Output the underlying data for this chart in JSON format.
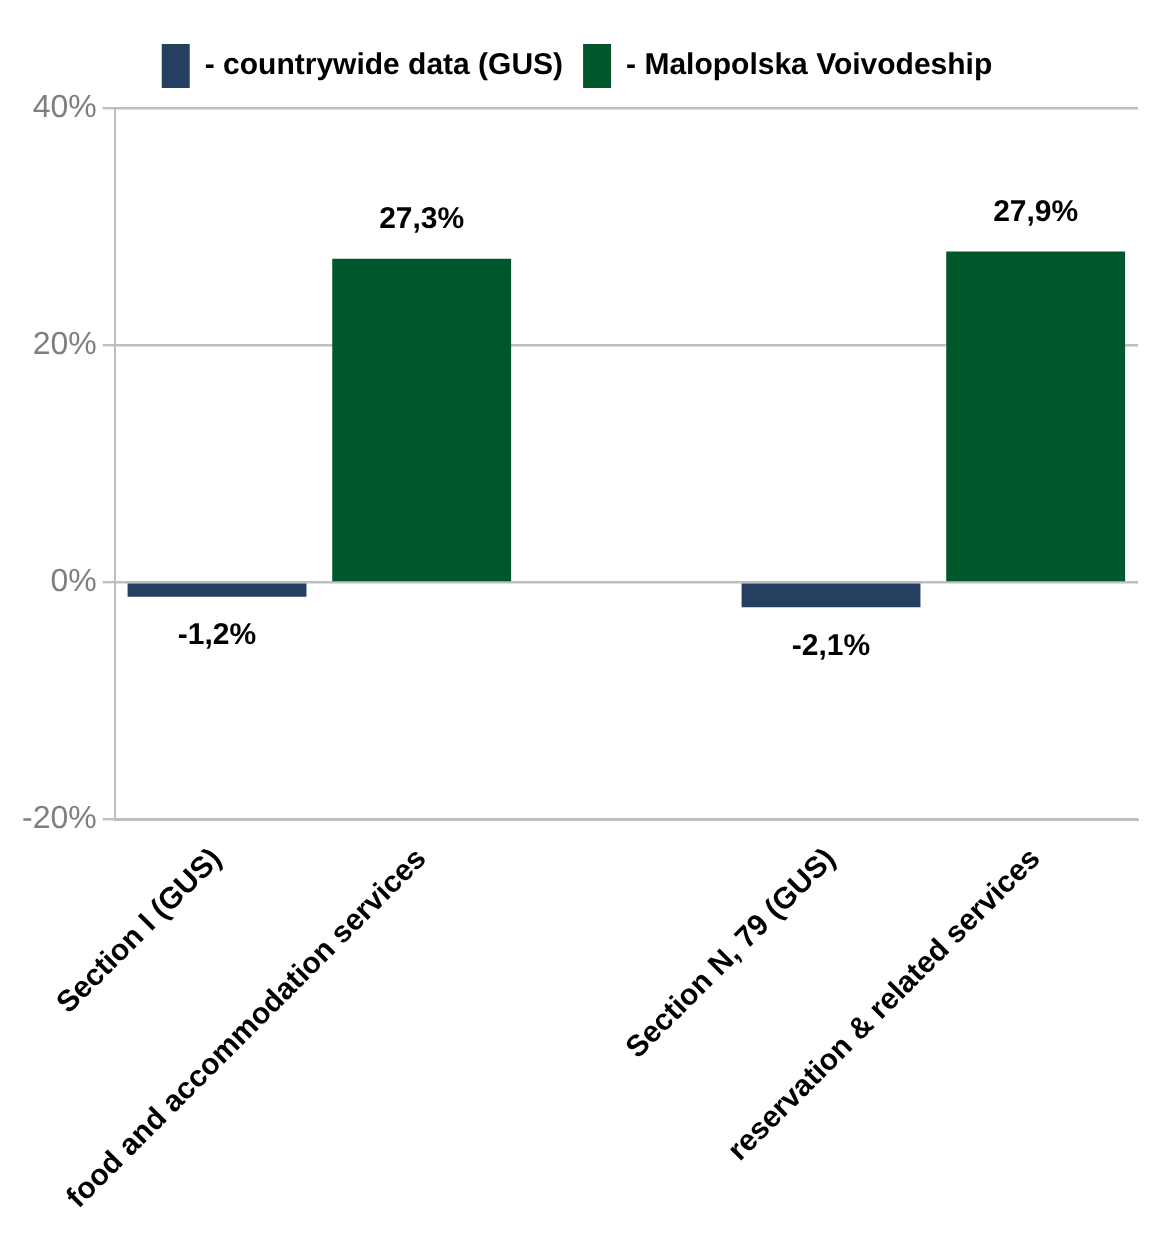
{
  "chart_data": {
    "type": "bar",
    "categories": [
      "Section I (GUS)",
      "food and accommodation services",
      null,
      "Section N, 79 (GUS)",
      "reservation & related services"
    ],
    "series": [
      {
        "name": "- countrywide data (GUS)",
        "color": "#243f60",
        "values": [
          -1.2,
          null,
          null,
          -2.1,
          null
        ],
        "value_labels": [
          "-1,2%",
          null,
          null,
          "-2,1%",
          null
        ]
      },
      {
        "name": "- Malopolska Voivodeship",
        "color": "#00572c",
        "values": [
          null,
          27.3,
          null,
          null,
          27.9
        ],
        "value_labels": [
          null,
          "27,3%",
          null,
          null,
          "27,9%"
        ]
      }
    ],
    "ylim": [
      -20,
      40
    ],
    "yticks": [
      {
        "value": -20,
        "label": "-20%"
      },
      {
        "value": 0,
        "label": "0%"
      },
      {
        "value": 20,
        "label": "20%"
      },
      {
        "value": 40,
        "label": "40%"
      }
    ],
    "grid": "y",
    "legend": "top"
  }
}
